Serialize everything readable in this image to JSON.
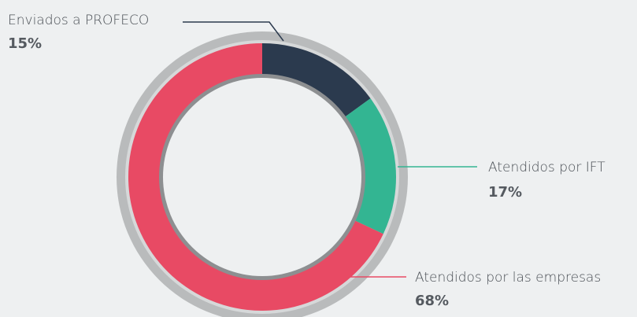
{
  "chart_data": {
    "type": "donut",
    "categories": [
      "Enviados a PROFECO",
      "Atendidos por IFT",
      "Atendidos por las empresas"
    ],
    "values": [
      15,
      17,
      68
    ],
    "value_labels": [
      "15%",
      "17%",
      "68%"
    ],
    "colors": [
      "#2b3a4e",
      "#33b592",
      "#e84a64"
    ]
  }
}
